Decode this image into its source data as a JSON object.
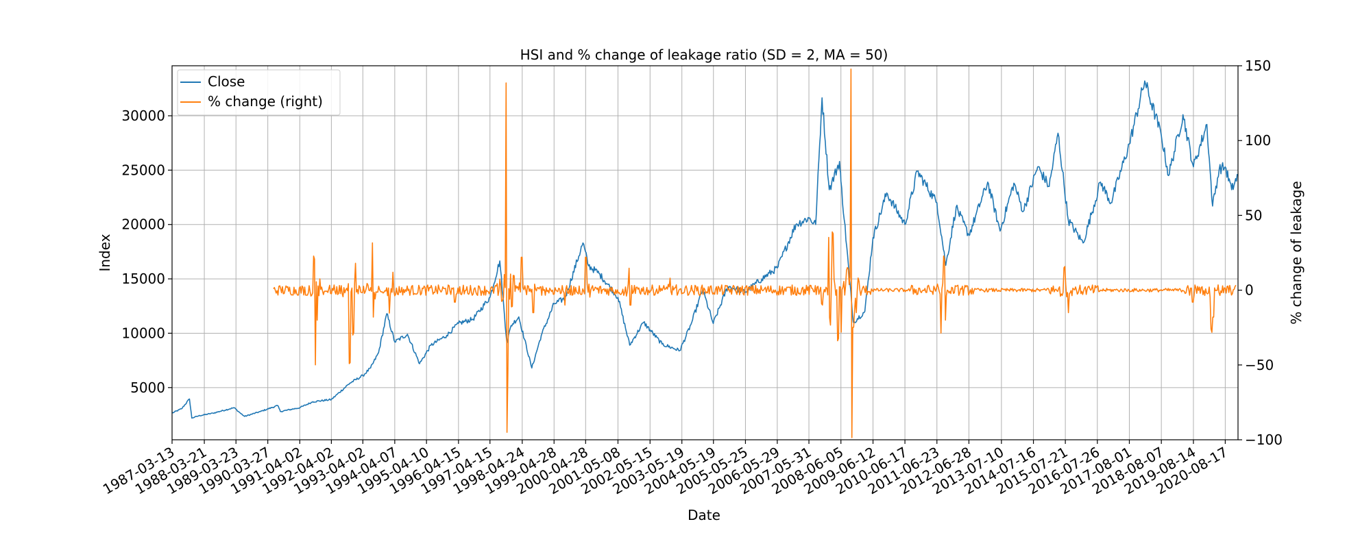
{
  "chart_data": {
    "type": "line",
    "title": "HSI and % change of leakage ratio (SD = 2, MA = 50)",
    "xlabel": "Date",
    "ylabel": "Index",
    "y2label": "% change of leakage",
    "grid": true,
    "legend_position": "top-left",
    "xlim": [
      "1987-03-13",
      "2021-01-12"
    ],
    "ylim": [
      200,
      34600
    ],
    "y2lim": [
      -100,
      150
    ],
    "x_tick_labels": [
      "1987-03-13",
      "1988-03-21",
      "1989-03-23",
      "1990-03-27",
      "1991-04-02",
      "1992-04-02",
      "1993-04-02",
      "1994-04-07",
      "1995-04-10",
      "1996-04-15",
      "1997-04-15",
      "1998-04-24",
      "1999-04-28",
      "2000-04-28",
      "2001-05-08",
      "2002-05-15",
      "2003-05-19",
      "2004-05-19",
      "2005-05-25",
      "2006-05-29",
      "2007-05-31",
      "2008-06-05",
      "2009-06-12",
      "2010-06-17",
      "2011-06-23",
      "2012-06-28",
      "2013-07-10",
      "2014-07-16",
      "2015-07-21",
      "2016-07-26",
      "2017-08-01",
      "2018-08-07",
      "2019-08-14",
      "2020-08-17"
    ],
    "y_ticks": [
      5000,
      10000,
      15000,
      20000,
      25000,
      30000
    ],
    "y_tick_labels": [
      "5000",
      "10000",
      "15000",
      "20000",
      "25000",
      "30000"
    ],
    "y2_ticks": [
      -100,
      -50,
      0,
      50,
      100,
      150
    ],
    "y2_tick_labels": [
      "−100",
      "−50",
      "0",
      "50",
      "100",
      "150"
    ],
    "series": [
      {
        "name": "Close",
        "axis": "left",
        "color": "#1f77b4",
        "points": [
          [
            "1987-03-13",
            2650
          ],
          [
            "1987-07-01",
            3050
          ],
          [
            "1987-10-01",
            3950
          ],
          [
            "1987-10-28",
            2200
          ],
          [
            "1988-01-15",
            2400
          ],
          [
            "1988-07-01",
            2650
          ],
          [
            "1989-03-01",
            3150
          ],
          [
            "1989-05-20",
            2600
          ],
          [
            "1989-07-01",
            2350
          ],
          [
            "1990-01-01",
            2800
          ],
          [
            "1990-07-20",
            3350
          ],
          [
            "1990-08-20",
            2800
          ],
          [
            "1991-04-02",
            3150
          ],
          [
            "1991-09-01",
            3700
          ],
          [
            "1992-04-02",
            3900
          ],
          [
            "1992-11-01",
            5400
          ],
          [
            "1993-04-02",
            6100
          ],
          [
            "1993-07-01",
            6800
          ],
          [
            "1993-10-01",
            8200
          ],
          [
            "1994-01-05",
            11800
          ],
          [
            "1994-04-07",
            9200
          ],
          [
            "1994-09-01",
            9900
          ],
          [
            "1995-01-20",
            7200
          ],
          [
            "1995-06-01",
            8900
          ],
          [
            "1995-12-01",
            9800
          ],
          [
            "1996-04-15",
            10900
          ],
          [
            "1996-10-01",
            11300
          ],
          [
            "1997-04-15",
            13300
          ],
          [
            "1997-08-07",
            16650
          ],
          [
            "1997-10-28",
            9100
          ],
          [
            "1997-12-15",
            10700
          ],
          [
            "1998-03-15",
            11500
          ],
          [
            "1998-08-13",
            6800
          ],
          [
            "1998-12-01",
            9800
          ],
          [
            "1999-04-28",
            12700
          ],
          [
            "1999-09-01",
            13200
          ],
          [
            "2000-03-28",
            18300
          ],
          [
            "2000-06-01",
            16200
          ],
          [
            "2000-10-01",
            15500
          ],
          [
            "2001-05-08",
            13300
          ],
          [
            "2001-09-21",
            8900
          ],
          [
            "2002-03-01",
            11000
          ],
          [
            "2002-10-01",
            9000
          ],
          [
            "2003-04-25",
            8400
          ],
          [
            "2003-09-01",
            10800
          ],
          [
            "2004-01-15",
            14000
          ],
          [
            "2004-05-17",
            10900
          ],
          [
            "2004-11-01",
            14300
          ],
          [
            "2005-05-25",
            13800
          ],
          [
            "2005-12-01",
            15000
          ],
          [
            "2006-05-29",
            16000
          ],
          [
            "2006-12-31",
            20000
          ],
          [
            "2007-05-31",
            20600
          ],
          [
            "2007-08-17",
            20000
          ],
          [
            "2007-10-30",
            31650
          ],
          [
            "2008-01-22",
            23200
          ],
          [
            "2008-05-20",
            25800
          ],
          [
            "2008-06-05",
            24000
          ],
          [
            "2008-10-27",
            11000
          ],
          [
            "2009-03-09",
            12000
          ],
          [
            "2009-06-12",
            18800
          ],
          [
            "2009-11-18",
            22900
          ],
          [
            "2010-06-17",
            20000
          ],
          [
            "2010-11-08",
            24900
          ],
          [
            "2011-06-23",
            22000
          ],
          [
            "2011-10-04",
            16250
          ],
          [
            "2012-02-01",
            21600
          ],
          [
            "2012-06-28",
            19000
          ],
          [
            "2013-02-01",
            23900
          ],
          [
            "2013-06-24",
            19400
          ],
          [
            "2013-12-01",
            23800
          ],
          [
            "2014-03-20",
            21200
          ],
          [
            "2014-09-03",
            25300
          ],
          [
            "2015-01-15",
            23500
          ],
          [
            "2015-04-27",
            28400
          ],
          [
            "2015-08-24",
            20400
          ],
          [
            "2016-02-12",
            18300
          ],
          [
            "2016-09-01",
            23900
          ],
          [
            "2016-12-31",
            22000
          ],
          [
            "2017-08-01",
            27400
          ],
          [
            "2018-01-26",
            33200
          ],
          [
            "2018-08-07",
            28200
          ],
          [
            "2018-10-30",
            24500
          ],
          [
            "2019-04-15",
            30100
          ],
          [
            "2019-08-14",
            25300
          ],
          [
            "2020-01-17",
            29200
          ],
          [
            "2020-03-23",
            21700
          ],
          [
            "2020-06-08",
            25100
          ],
          [
            "2020-08-17",
            25300
          ],
          [
            "2020-10-30",
            23200
          ],
          [
            "2021-01-12",
            24500
          ]
        ]
      },
      {
        "name": "% change (right)",
        "axis": "right",
        "color": "#ff7f0e",
        "start": "1990-06-01",
        "spikes": [
          [
            "1991-09-15",
            18
          ],
          [
            "1991-10-01",
            -48
          ],
          [
            "1991-10-20",
            -20
          ],
          [
            "1992-11-02",
            -50
          ],
          [
            "1992-12-10",
            -30
          ],
          [
            "1993-01-05",
            18
          ],
          [
            "1993-07-20",
            30
          ],
          [
            "1993-08-01",
            -18
          ],
          [
            "1994-02-01",
            -15
          ],
          [
            "1994-03-15",
            12
          ],
          [
            "1996-03-01",
            -8
          ],
          [
            "1997-09-01",
            -12
          ],
          [
            "1997-10-23",
            150
          ],
          [
            "1997-10-28",
            -100
          ],
          [
            "1997-11-10",
            -55
          ],
          [
            "1998-01-15",
            10
          ],
          [
            "1998-04-20",
            22
          ],
          [
            "1998-09-01",
            -15
          ],
          [
            "1999-09-01",
            -10
          ],
          [
            "2000-05-01",
            22
          ],
          [
            "2001-09-21",
            15
          ],
          [
            "2001-10-01",
            -10
          ],
          [
            "2003-01-01",
            8
          ],
          [
            "2007-11-01",
            -10
          ],
          [
            "2008-01-22",
            36
          ],
          [
            "2008-02-01",
            -20
          ],
          [
            "2008-03-01",
            38
          ],
          [
            "2008-05-01",
            -32
          ],
          [
            "2008-06-10",
            -28
          ],
          [
            "2008-10-02",
            150
          ],
          [
            "2008-10-10",
            -100
          ],
          [
            "2008-10-27",
            -25
          ],
          [
            "2008-12-01",
            -15
          ],
          [
            "2011-08-10",
            -30
          ],
          [
            "2011-09-15",
            22
          ],
          [
            "2011-10-01",
            -20
          ],
          [
            "2015-07-08",
            16
          ],
          [
            "2015-08-24",
            -15
          ],
          [
            "2019-08-05",
            -8
          ],
          [
            "2020-03-12",
            -25
          ],
          [
            "2020-03-23",
            31
          ],
          [
            "2020-04-01",
            -18
          ]
        ]
      }
    ]
  }
}
